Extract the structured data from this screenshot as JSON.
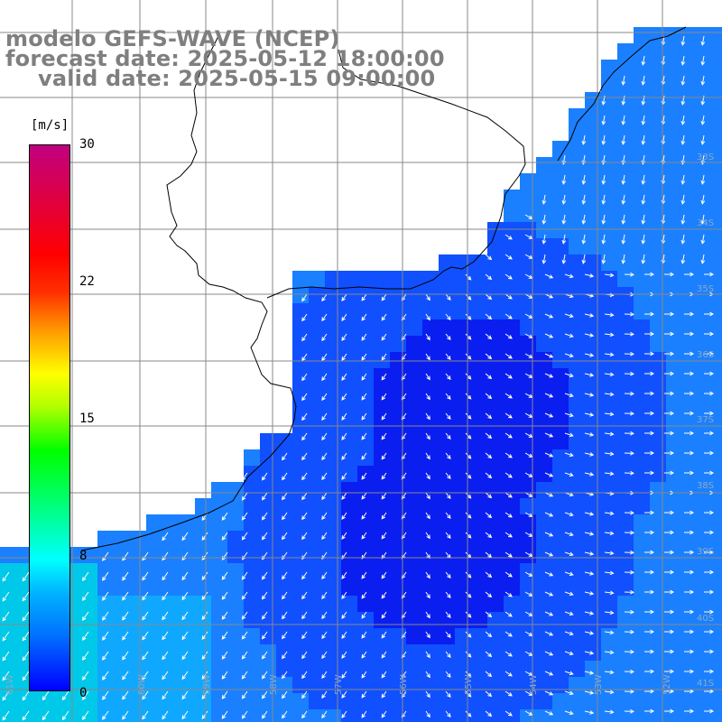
{
  "title": {
    "model": "modelo GEFS-WAVE (NCEP)",
    "forecast": "forecast date: 2025-05-12 18:00:00",
    "valid": "valid date: 2025-05-15 09:00:00"
  },
  "colorbar": {
    "unit": "[m/s]",
    "ticks": [
      "30",
      "22",
      "15",
      "8",
      "0"
    ],
    "range": [
      0,
      30
    ],
    "colors": [
      "#0000ff",
      "#00b4ff",
      "#00ffff",
      "#00ff00",
      "#ffff00",
      "#ff9a00",
      "#ff0000",
      "#c00080"
    ]
  },
  "grid": {
    "lon_labels": [
      "61W",
      "60W",
      "59W",
      "58W",
      "57W",
      "56W",
      "55W",
      "54W",
      "53W",
      "52W",
      "51W"
    ],
    "lat_labels": [
      "33S",
      "34S",
      "35S",
      "36S",
      "37S",
      "38S",
      "39S",
      "40S",
      "41S"
    ]
  },
  "colors": {
    "land": "#ffffff",
    "coast": "#000000",
    "grid": "#888888",
    "ocean_low": "#0a1ef0",
    "ocean_mid": "#1050ff",
    "ocean_high": "#1a80ff",
    "ocean_sw": "#00c8e8",
    "arrow": "#ffffff"
  },
  "field": {
    "variable": "wind speed",
    "description_units": "m/s"
  }
}
